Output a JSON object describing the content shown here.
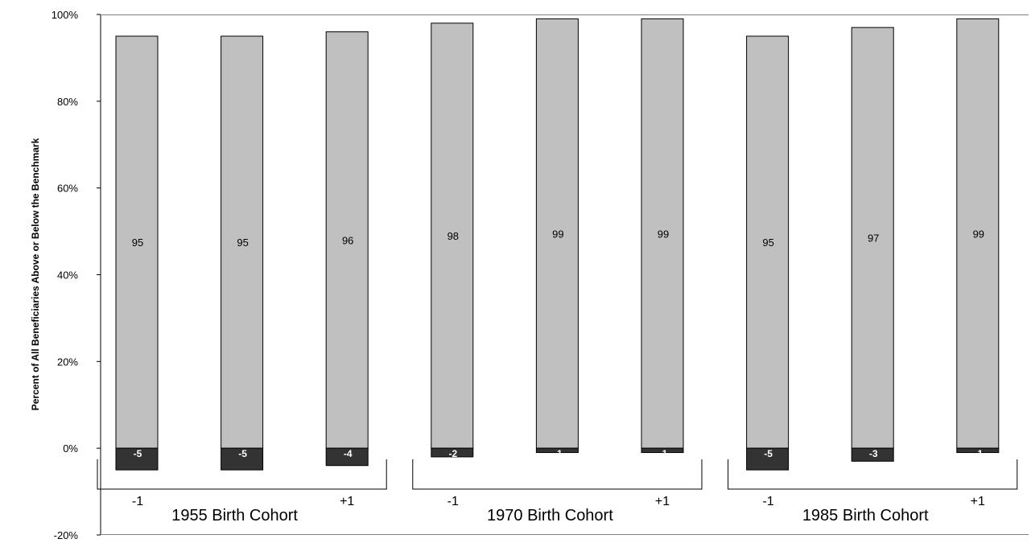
{
  "chart_data": {
    "type": "bar",
    "stacked": true,
    "ylabel": "Percent of All Beneficiaries Above or Below the Benchmark",
    "ylim": [
      -20,
      100
    ],
    "yticks": [
      -20,
      0,
      20,
      40,
      60,
      80,
      100
    ],
    "ytick_labels": [
      "-20%",
      "0%",
      "20%",
      "40%",
      "60%",
      "80%",
      "100%"
    ],
    "groups": [
      {
        "label": "1955 Birth Cohort",
        "markers": [
          "-1",
          "+1"
        ]
      },
      {
        "label": "1970 Birth Cohort",
        "markers": [
          "-1",
          "+1"
        ]
      },
      {
        "label": "1985 Birth Cohort",
        "markers": [
          "-1",
          "+1"
        ]
      }
    ],
    "bars_per_group": 3,
    "series": [
      {
        "values": [
          95,
          95,
          96,
          98,
          99,
          99,
          95,
          97,
          99
        ],
        "labels": [
          "95",
          "95",
          "96",
          "98",
          "99",
          "99",
          "95",
          "97",
          "99"
        ],
        "color": "#c0c0c0"
      },
      {
        "values": [
          -5,
          -5,
          -4,
          -2,
          -1,
          -1,
          -5,
          -3,
          -1
        ],
        "labels": [
          "-5",
          "-5",
          "-4",
          "-2",
          "-1",
          "-1",
          "-5",
          "-3",
          "-1"
        ],
        "color": "#333333"
      }
    ],
    "grid": false,
    "legend": "none"
  }
}
